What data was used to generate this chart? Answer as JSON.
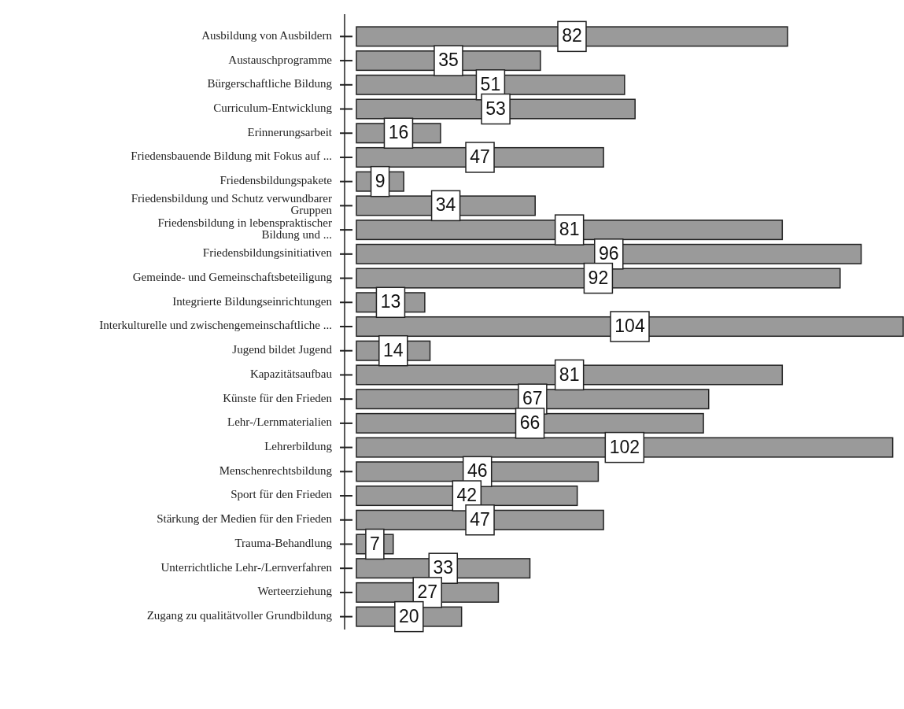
{
  "chart_data": {
    "type": "bar",
    "orientation": "horizontal",
    "relative": false,
    "data_labels": true,
    "color": "#9a9a9a",
    "categories": [
      "Ausbildung von Ausbildern",
      "Austauschprogramme",
      "Bürgerschaftliche Bildung",
      "Curriculum-Entwicklung",
      "Erinnerungsarbeit",
      "Friedensbauende Bildung mit Fokus auf ...",
      "Friedensbildungspakete",
      "Friedensbildung und Schutz verwundbarer\nGruppen",
      "Friedensbildung in lebenspraktischer\nBildung  und ...",
      "Friedensbildungsinitiativen",
      "Gemeinde- und Gemeinschaftsbeteiligung",
      "Integrierte Bildungseinrichtungen",
      "Interkulturelle und zwischengemeinschaftliche ...",
      "Jugend bildet Jugend",
      "Kapazitätsaufbau",
      "Künste für den Frieden",
      "Lehr-/Lernmaterialien",
      "Lehrerbildung",
      "Menschenrechtsbildung",
      "Sport für den Frieden",
      "Stärkung der Medien für den Frieden",
      "Trauma-Behandlung",
      "Unterrichtliche Lehr-/Lernverfahren",
      "Werteerziehung",
      "Zugang zu qualitätvoller Grundbildung"
    ],
    "values": [
      82,
      35,
      51,
      53,
      16,
      47,
      9,
      34,
      81,
      96,
      92,
      13,
      104,
      14,
      81,
      67,
      66,
      102,
      46,
      42,
      47,
      7,
      33,
      27,
      20
    ]
  }
}
